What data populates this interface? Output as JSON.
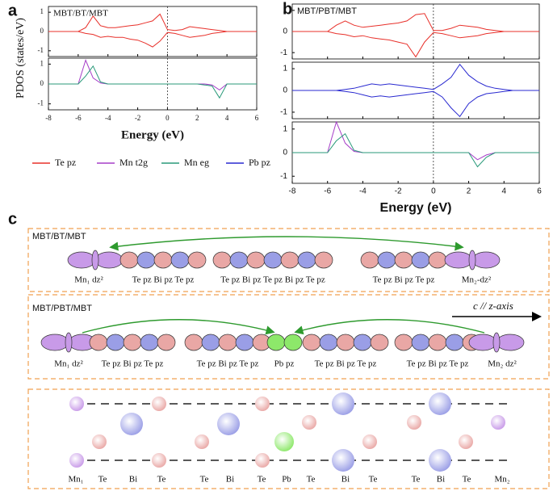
{
  "chart_data": [
    {
      "type": "line",
      "label": "a",
      "title": "MBT/BT/MBT",
      "ylabel": "PDOS (states/eV)",
      "xlabel": "Energy (eV)",
      "xlim": [
        -8,
        6
      ],
      "xticks": [
        -8,
        -6,
        -4,
        -2,
        0,
        2,
        4,
        6
      ],
      "vline": 0,
      "x": [
        -8,
        -7.5,
        -7,
        -6.5,
        -6,
        -5.5,
        -5,
        -4.5,
        -4,
        -3.5,
        -3,
        -2.5,
        -2,
        -1.5,
        -1,
        -0.5,
        0,
        0.5,
        1,
        1.5,
        2,
        2.5,
        3,
        3.5,
        4,
        4.5,
        5,
        5.5,
        6
      ],
      "subplots": [
        {
          "ylim": [
            -1.3,
            1.3
          ],
          "yticks": [
            -1,
            0,
            1
          ],
          "series": [
            {
              "name": "Te pz",
              "color": "#e8302a",
              "values": [
                0,
                0,
                0,
                0,
                0,
                0.2,
                0.8,
                0.3,
                0.2,
                0.2,
                0.25,
                0.3,
                0.35,
                0.45,
                0.55,
                0.9,
                0.1,
                0.05,
                0.1,
                0.25,
                0.2,
                0.15,
                0.1,
                0.05,
                0,
                0,
                0,
                0,
                0
              ],
              "values_down": [
                0,
                0,
                0,
                0,
                0,
                -0.1,
                -0.15,
                -0.3,
                -0.25,
                -0.3,
                -0.3,
                -0.4,
                -0.45,
                -0.6,
                -0.8,
                -0.5,
                -0.05,
                -0.1,
                -0.2,
                -0.3,
                -0.25,
                -0.2,
                -0.1,
                -0.05,
                0,
                0,
                0,
                0,
                0
              ]
            }
          ]
        },
        {
          "ylim": [
            -1.3,
            1.3
          ],
          "yticks": [
            -1,
            0,
            1
          ],
          "series": [
            {
              "name": "Mn t2g",
              "color": "#a63ec8",
              "values": [
                0,
                0,
                0,
                0,
                0,
                1.2,
                0.3,
                0.05,
                0,
                0,
                0,
                0,
                0,
                0,
                0,
                0,
                0,
                0,
                0,
                0,
                0,
                0,
                -0.05,
                -0.3,
                0,
                0,
                0,
                0,
                0
              ]
            },
            {
              "name": "Mn eg",
              "color": "#2a9a7a",
              "values": [
                0,
                0,
                0,
                0,
                0,
                0.4,
                0.9,
                0.1,
                0,
                0,
                0,
                0,
                0,
                0,
                0,
                0,
                0,
                0,
                0,
                0,
                0,
                -0.05,
                -0.1,
                -0.7,
                0,
                0,
                0,
                0,
                0
              ]
            }
          ]
        }
      ]
    },
    {
      "type": "line",
      "label": "b",
      "title": "MBT/PBT/MBT",
      "xlabel": "Energy (eV)",
      "xlim": [
        -8,
        6
      ],
      "xticks": [
        -8,
        -6,
        -4,
        -2,
        0,
        2,
        4,
        6
      ],
      "vline": 0,
      "x": [
        -8,
        -7.5,
        -7,
        -6.5,
        -6,
        -5.5,
        -5,
        -4.5,
        -4,
        -3.5,
        -3,
        -2.5,
        -2,
        -1.5,
        -1,
        -0.5,
        0,
        0.5,
        1,
        1.5,
        2,
        2.5,
        3,
        3.5,
        4,
        4.5,
        5,
        5.5,
        6
      ],
      "subplots": [
        {
          "ylim": [
            -1.3,
            1.3
          ],
          "yticks": [
            -1,
            0,
            1
          ],
          "series": [
            {
              "color": "#e8302a",
              "values": [
                0,
                0,
                0,
                0,
                0,
                0.3,
                0.5,
                0.3,
                0.2,
                0.25,
                0.3,
                0.35,
                0.4,
                0.5,
                0.8,
                0.85,
                0.05,
                0.05,
                0.15,
                0.3,
                0.25,
                0.2,
                0.1,
                0.05,
                0,
                0,
                0,
                0,
                0
              ],
              "values_down": [
                0,
                0,
                0,
                0,
                0,
                -0.1,
                -0.15,
                -0.25,
                -0.2,
                -0.3,
                -0.35,
                -0.4,
                -0.5,
                -0.6,
                -1.2,
                -0.5,
                -0.05,
                -0.1,
                -0.2,
                -0.3,
                -0.25,
                -0.2,
                -0.1,
                -0.05,
                0,
                0,
                0,
                0,
                0
              ]
            }
          ]
        },
        {
          "ylim": [
            -1.3,
            1.3
          ],
          "yticks": [
            -1,
            0,
            1
          ],
          "series": [
            {
              "name": "Pb pz",
              "color": "#2a2ad0",
              "values": [
                0,
                0,
                0,
                0,
                0,
                0,
                0.05,
                0.1,
                0.2,
                0.3,
                0.25,
                0.3,
                0.25,
                0.2,
                0.15,
                0.1,
                0.05,
                0.3,
                0.6,
                1.2,
                0.7,
                0.4,
                0.2,
                0.1,
                0.05,
                0,
                0,
                0,
                0
              ],
              "values_down": [
                0,
                0,
                0,
                0,
                0,
                0,
                -0.05,
                -0.1,
                -0.2,
                -0.3,
                -0.25,
                -0.3,
                -0.25,
                -0.2,
                -0.15,
                -0.1,
                -0.05,
                -0.3,
                -0.8,
                -1.2,
                -0.6,
                -0.3,
                -0.15,
                -0.1,
                -0.05,
                0,
                0,
                0,
                0
              ]
            }
          ]
        },
        {
          "ylim": [
            -1.3,
            1.3
          ],
          "yticks": [
            -1,
            0,
            1
          ],
          "series": [
            {
              "color": "#a63ec8",
              "values": [
                0,
                0,
                0,
                0,
                0,
                1.3,
                0.4,
                0.05,
                0,
                0,
                0,
                0,
                0,
                0,
                0,
                0,
                0,
                0,
                0,
                0,
                0,
                -0.3,
                -0.1,
                0,
                0,
                0,
                0,
                0,
                0
              ]
            },
            {
              "color": "#2a9a7a",
              "values": [
                0,
                0,
                0,
                0,
                0,
                0.5,
                0.8,
                0.1,
                0,
                0,
                0,
                0,
                0,
                0,
                0,
                0,
                0,
                0,
                0,
                0,
                0,
                -0.6,
                -0.2,
                0,
                0,
                0,
                0,
                0,
                0
              ]
            }
          ]
        }
      ]
    }
  ],
  "diagram": {
    "label": "c",
    "rows": [
      {
        "title": "MBT/BT/MBT",
        "labels": [
          "Mn₁ dz²",
          "Te pz Bi pz Te pz",
          "Te pz Bi pz Te pz Bi pz Te pz",
          "Te pz Bi pz Te pz",
          "Mn₂-dz²"
        ]
      },
      {
        "title": "MBT/PBT/MBT",
        "axis": "c // z-axis",
        "labels": [
          "Mn₁ dz²",
          "Te pz Bi pz Te pz",
          "Te pz Bi pz Te pz",
          "Pb pz",
          "Te pz Bi pz Te pz",
          "Te pz Bi pz Te pz",
          "Mn₂ dz²"
        ]
      },
      {
        "atoms": [
          "Mn₁",
          "Te",
          "Bi",
          "Te",
          "Te",
          "Bi",
          "Te",
          "Pb",
          "Te",
          "Bi",
          "Te",
          "Te",
          "Bi",
          "Te",
          "Mn₂"
        ]
      }
    ]
  }
}
